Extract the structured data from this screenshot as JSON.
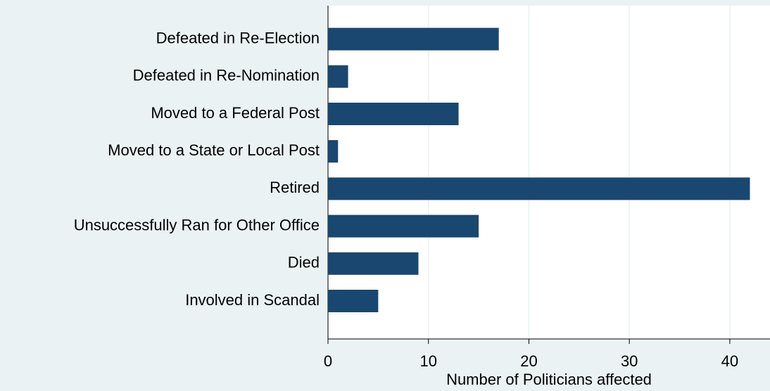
{
  "chart_data": {
    "type": "hbar",
    "xlabel": "Number of Politicians affected",
    "categories": [
      "Defeated in Re-Election",
      "Defeated in Re-Nomination",
      "Moved to a Federal Post",
      "Moved to a State or Local Post",
      "Retired",
      "Unsuccessfully Ran for Other Office",
      "Died",
      "Involved in Scandal"
    ],
    "values": [
      17,
      2,
      13,
      1,
      42,
      15,
      9,
      5
    ],
    "color": "#1a476f",
    "xlim": [
      0,
      44
    ],
    "xticks": [
      0,
      10,
      20,
      30,
      40
    ],
    "grid": true
  }
}
